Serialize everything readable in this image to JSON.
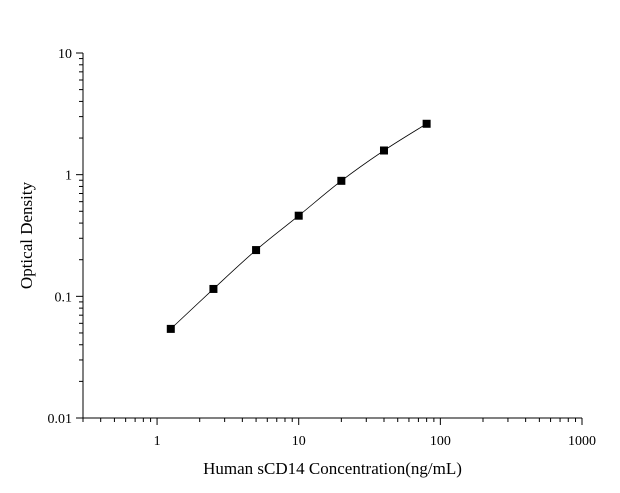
{
  "chart_data": {
    "type": "scatter",
    "xscale": "log",
    "yscale": "log",
    "xlabel": "Human sCD14 Concentration(ng/mL)",
    "ylabel": "Optical Density",
    "xlim": [
      0.3,
      1000
    ],
    "ylim": [
      0.01,
      10
    ],
    "xticks": [
      {
        "value": 1,
        "label": "1"
      },
      {
        "value": 10,
        "label": "10"
      },
      {
        "value": 100,
        "label": "100"
      },
      {
        "value": 1000,
        "label": "1000"
      }
    ],
    "yticks": [
      {
        "value": 0.01,
        "label": "0.01"
      },
      {
        "value": 0.1,
        "label": "0.1"
      },
      {
        "value": 1,
        "label": "1"
      },
      {
        "value": 10,
        "label": "10"
      }
    ],
    "grid": false,
    "legend": "none",
    "series": [
      {
        "x": [
          1.25,
          2.5,
          5,
          10,
          20,
          40,
          80
        ],
        "y": [
          0.054,
          0.115,
          0.24,
          0.46,
          0.89,
          1.58,
          2.62
        ],
        "marker": "square",
        "color": "#000000",
        "connect": "smooth-line"
      }
    ]
  }
}
